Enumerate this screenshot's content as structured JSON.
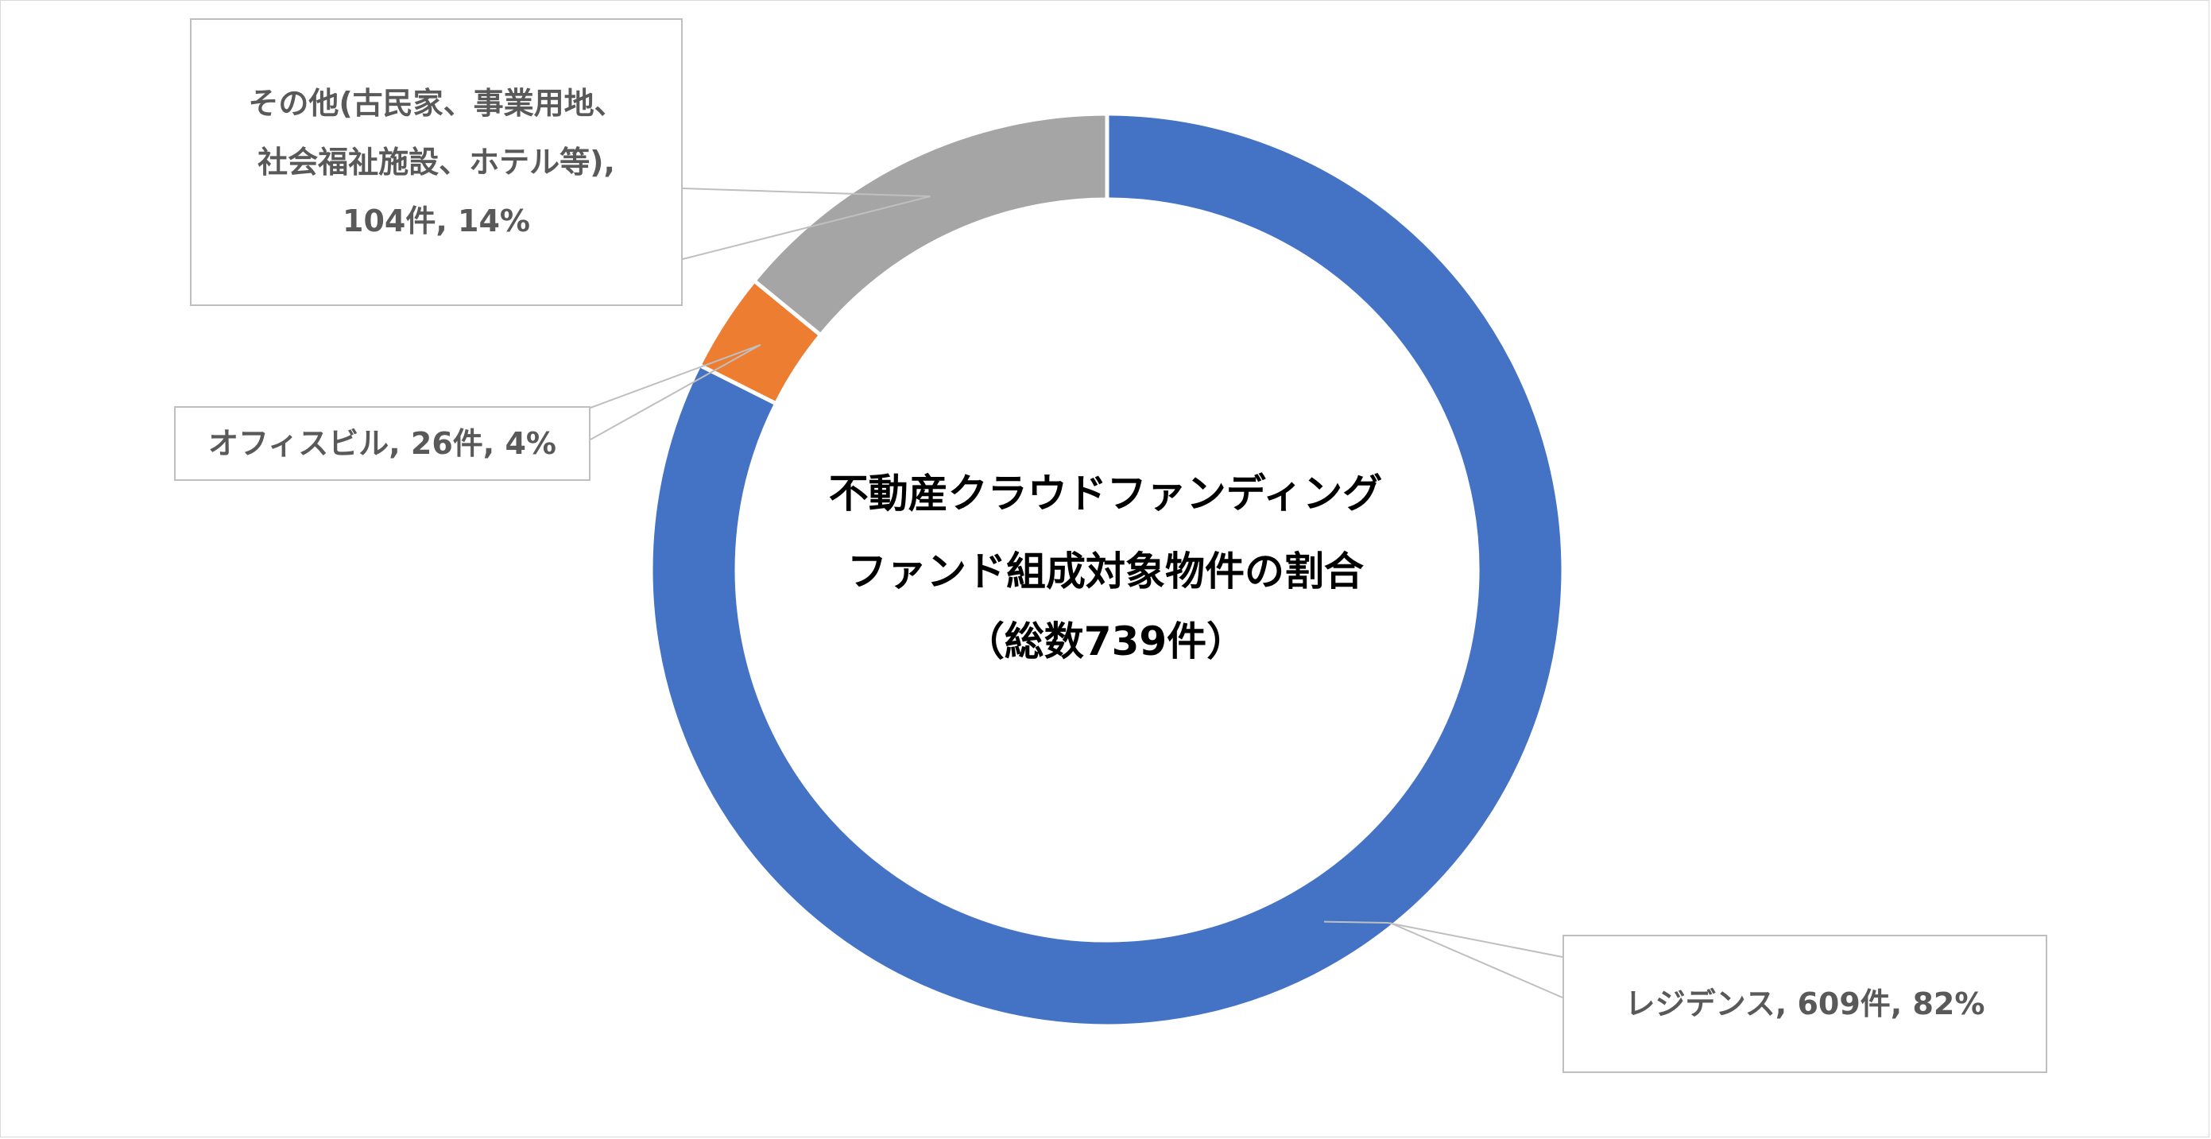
{
  "chart_data": {
    "type": "pie",
    "variant": "donut",
    "title_lines": [
      "不動産クラウドファンディング",
      "ファンド組成対象物件の割合",
      "（総数739件）"
    ],
    "total": 739,
    "slices": [
      {
        "name": "レジデンス",
        "value": 609,
        "percent": "82%",
        "color": "#4472C4",
        "label_lines": [
          "レジデンス, 609件, 82%"
        ]
      },
      {
        "name": "オフィスビル",
        "value": 26,
        "percent": "4%",
        "color": "#ED7D31",
        "label_lines": [
          "オフィスビル, 26件, 4%"
        ]
      },
      {
        "name": "その他(古民家、事業用地、社会福祉施設、ホテル等)",
        "value": 104,
        "percent": "14%",
        "color": "#A5A5A5",
        "label_lines": [
          "その他(古民家、事業用地、",
          "社会福祉施設、ホテル等),",
          "104件, 14%"
        ]
      }
    ],
    "legend": "none"
  }
}
